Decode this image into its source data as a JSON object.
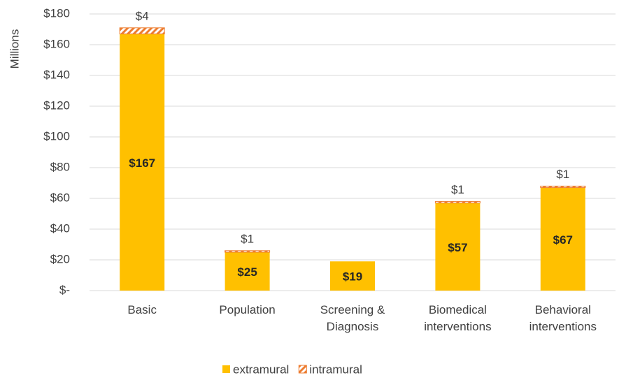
{
  "chart_data": {
    "type": "stacked_bar",
    "y_label": "Millions",
    "categories": [
      "Basic",
      "Population",
      "Screening & Diagnosis",
      "Biomedical interventions",
      "Behavioral interventions"
    ],
    "series": [
      {
        "name": "extramural",
        "color": "#FFC000",
        "values": [
          167,
          25,
          19,
          57,
          67
        ],
        "value_labels": [
          "$167",
          "$25",
          "$19",
          "$57",
          "$67"
        ]
      },
      {
        "name": "intramural",
        "color": "#ED7D31",
        "values": [
          4,
          1,
          null,
          1,
          1
        ],
        "value_labels": [
          "$4",
          "$1",
          null,
          "$1",
          "$1"
        ]
      }
    ],
    "ylim": [
      0,
      180
    ],
    "yticks": [
      {
        "value": 0,
        "label": "$-"
      },
      {
        "value": 20,
        "label": "$20"
      },
      {
        "value": 40,
        "label": "$40"
      },
      {
        "value": 60,
        "label": "$60"
      },
      {
        "value": 80,
        "label": "$80"
      },
      {
        "value": 100,
        "label": "$100"
      },
      {
        "value": 120,
        "label": "$120"
      },
      {
        "value": 140,
        "label": "$140"
      },
      {
        "value": 160,
        "label": "$160"
      },
      {
        "value": 180,
        "label": "$180"
      }
    ],
    "grid": true
  }
}
